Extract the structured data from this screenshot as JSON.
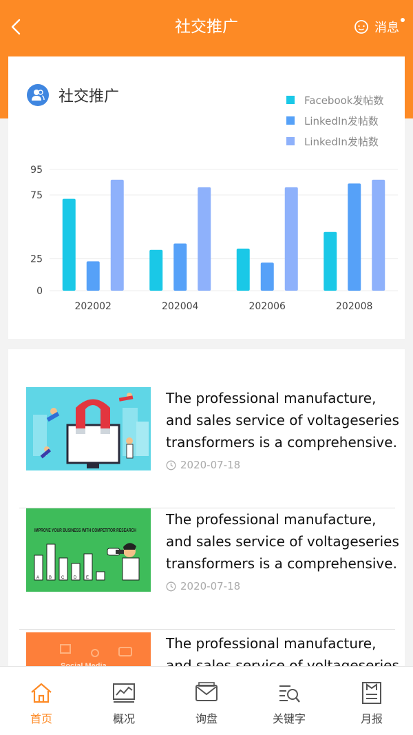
{
  "header": {
    "title": "社交推广",
    "message_label": "消息"
  },
  "chart_card": {
    "title": "社交推广",
    "legend": [
      {
        "label": "Facebook发帖数",
        "color": "#1ac8e7"
      },
      {
        "label": "LinkedIn发帖数",
        "color": "#56a1f8"
      },
      {
        "label": "LinkedIn发帖数",
        "color": "#8eb1fb"
      }
    ]
  },
  "chart_data": {
    "type": "bar",
    "categories": [
      "202002",
      "202004",
      "202006",
      "202008"
    ],
    "series": [
      {
        "name": "Facebook发帖数",
        "values": [
          72,
          32,
          33,
          46
        ]
      },
      {
        "name": "LinkedIn发帖数",
        "values": [
          23,
          37,
          22,
          84
        ]
      },
      {
        "name": "LinkedIn发帖数",
        "values": [
          87,
          81,
          81,
          87
        ]
      }
    ],
    "y_ticks": [
      0,
      25,
      75,
      95
    ],
    "ylim": [
      0,
      95
    ],
    "grid": true,
    "legend_position": "top-right"
  },
  "articles": [
    {
      "text": "The professional manufacture, and sales service of voltageseries transformers is a comprehensive.",
      "date": "2020-07-18",
      "thumb": "magnet"
    },
    {
      "text": "The professional manufacture, and sales service of voltageseries transformers is a comprehensive.",
      "date": "2020-07-18",
      "thumb": "competitor",
      "thumb_caption": "IMPROVE YOUR BUSINESS WITH COMPETITOR RESEARCH",
      "thumb_bar_labels": [
        "A",
        "B",
        "C",
        "D",
        "E"
      ]
    },
    {
      "text": "The professional manufacture, and sales service of voltageseries transformers is a comprehensive.",
      "date": "",
      "thumb": "social",
      "thumb_caption": "Social Media"
    }
  ],
  "tabs": [
    {
      "label": "首页",
      "icon": "home-icon",
      "active": true
    },
    {
      "label": "概况",
      "icon": "overview-chart-icon",
      "active": false
    },
    {
      "label": "询盘",
      "icon": "mail-icon",
      "active": false
    },
    {
      "label": "关键字",
      "icon": "keyword-search-icon",
      "active": false
    },
    {
      "label": "月报",
      "icon": "monthly-report-icon",
      "active": false
    }
  ]
}
